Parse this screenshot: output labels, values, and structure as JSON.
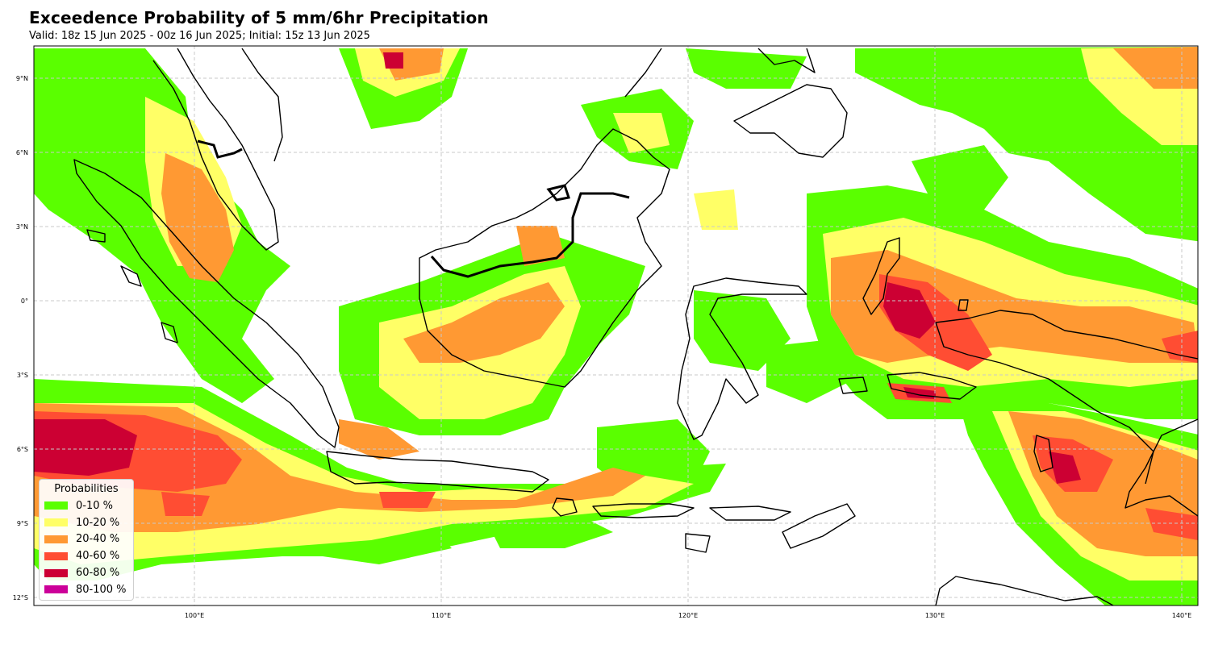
{
  "title": "Exceedence Probability of 5 mm/6hr Precipitation",
  "subtitle": "Valid: 18z 15 Jun 2025 - 00z 16 Jun 2025; Initial: 15z 13 Jun 2025",
  "axes": {
    "lat_labels": [
      "9°N",
      "6°N",
      "3°N",
      "0°",
      "3°S",
      "6°S",
      "9°S",
      "12°S"
    ],
    "lon_labels": [
      "100°E",
      "110°E",
      "120°E",
      "130°E",
      "140°E"
    ],
    "lon_range": [
      93.5,
      140.7
    ],
    "lat_range": [
      -12.3,
      10.3
    ],
    "grid": true
  },
  "legend": {
    "title": "Probabilities",
    "placement": "lower-left",
    "entries": [
      {
        "label": "0-10 %",
        "color": "#5aff00"
      },
      {
        "label": "10-20 %",
        "color": "#ffff66"
      },
      {
        "label": "20-40 %",
        "color": "#ff9933"
      },
      {
        "label": "40-60 %",
        "color": "#ff4d33"
      },
      {
        "label": "60-80 %",
        "color": "#cc0033"
      },
      {
        "label": "80-100 %",
        "color": "#cc0099"
      }
    ]
  }
}
